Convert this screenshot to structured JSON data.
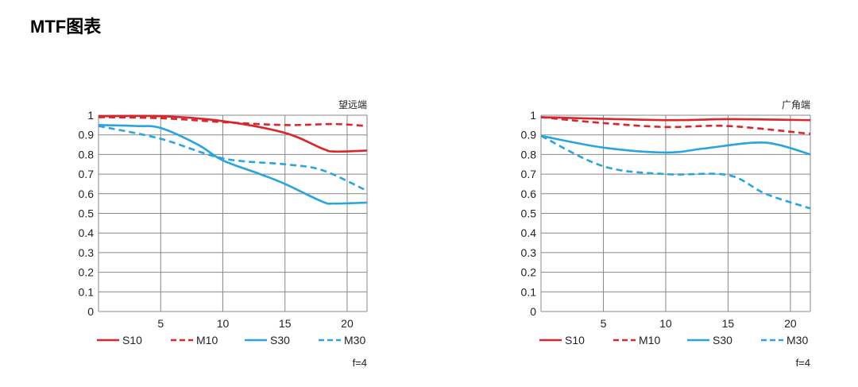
{
  "page_title": "MTF图表",
  "colors": {
    "red": "#d9262c",
    "blue": "#2aa4e0",
    "grid": "#888888"
  },
  "chart_data": [
    {
      "type": "line",
      "title": "望远端",
      "note": "f=4",
      "xlim": [
        0,
        21.6
      ],
      "ylim": [
        0,
        1
      ],
      "x_ticks": [
        5,
        10,
        15,
        20
      ],
      "y_ticks": [
        "0",
        "0.1",
        "0.2",
        "0.3",
        "0.4",
        "0.5",
        "0.6",
        "0.7",
        "0.8",
        "0.9",
        "1"
      ],
      "legend_position": "bottom",
      "series": [
        {
          "name": "S10",
          "color": "red",
          "dashed": false,
          "x": [
            0,
            5,
            10,
            15,
            18,
            19,
            21.6
          ],
          "y": [
            0.995,
            0.995,
            0.97,
            0.91,
            0.83,
            0.815,
            0.82
          ]
        },
        {
          "name": "M10",
          "color": "red",
          "dashed": true,
          "x": [
            0,
            5,
            10,
            15,
            19,
            21.6
          ],
          "y": [
            0.99,
            0.985,
            0.965,
            0.95,
            0.955,
            0.945
          ]
        },
        {
          "name": "S30",
          "color": "blue",
          "dashed": false,
          "x": [
            0,
            3,
            5,
            8,
            10,
            13,
            15,
            18,
            19,
            21.6
          ],
          "y": [
            0.95,
            0.945,
            0.935,
            0.85,
            0.77,
            0.7,
            0.65,
            0.56,
            0.55,
            0.555
          ]
        },
        {
          "name": "M30",
          "color": "blue",
          "dashed": true,
          "x": [
            0,
            5,
            10,
            15,
            18,
            21.6
          ],
          "y": [
            0.945,
            0.88,
            0.78,
            0.75,
            0.72,
            0.615
          ]
        }
      ]
    },
    {
      "type": "line",
      "title": "广角端",
      "note": "f=4",
      "xlim": [
        0,
        21.6
      ],
      "ylim": [
        0,
        1
      ],
      "x_ticks": [
        5,
        10,
        15,
        20
      ],
      "y_ticks": [
        "0",
        "0.1",
        "0.2",
        "0.3",
        "0.4",
        "0.5",
        "0.6",
        "0.7",
        "0.8",
        "0.9",
        "1"
      ],
      "legend_position": "bottom",
      "series": [
        {
          "name": "S10",
          "color": "red",
          "dashed": false,
          "x": [
            0,
            10,
            15,
            21.6
          ],
          "y": [
            0.99,
            0.975,
            0.98,
            0.975
          ]
        },
        {
          "name": "M10",
          "color": "red",
          "dashed": true,
          "x": [
            0,
            5,
            10,
            15,
            21.6
          ],
          "y": [
            0.99,
            0.96,
            0.94,
            0.945,
            0.905
          ]
        },
        {
          "name": "S30",
          "color": "blue",
          "dashed": false,
          "x": [
            0,
            5,
            10,
            13,
            17,
            19,
            21.6
          ],
          "y": [
            0.895,
            0.835,
            0.81,
            0.83,
            0.86,
            0.85,
            0.8
          ]
        },
        {
          "name": "M30",
          "color": "blue",
          "dashed": true,
          "x": [
            0,
            5,
            10,
            15,
            18,
            21.6
          ],
          "y": [
            0.895,
            0.74,
            0.7,
            0.695,
            0.6,
            0.525
          ]
        }
      ]
    }
  ]
}
